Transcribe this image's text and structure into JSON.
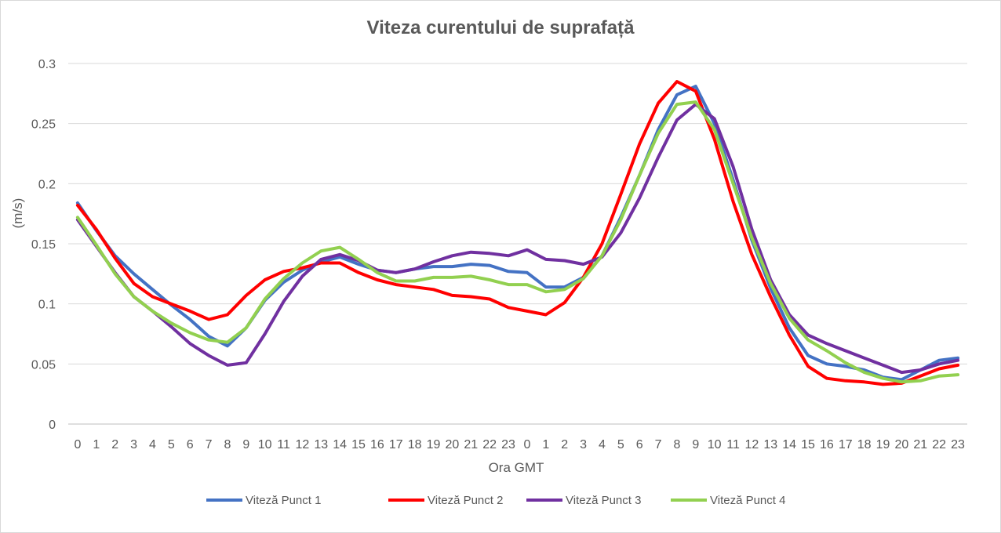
{
  "chart_data": {
    "type": "line",
    "title": "Viteza curentului de suprafață",
    "xlabel": "Ora GMT",
    "ylabel": "(m/s)",
    "ylim": [
      0,
      0.3
    ],
    "y_ticks": [
      "0",
      "0.05",
      "0.1",
      "0.15",
      "0.2",
      "0.25",
      "0.3"
    ],
    "y_tick_values": [
      0,
      0.05,
      0.1,
      0.15,
      0.2,
      0.25,
      0.3
    ],
    "grid": true,
    "legend_position": "bottom",
    "categories": [
      "0",
      "1",
      "2",
      "3",
      "4",
      "5",
      "6",
      "7",
      "8",
      "9",
      "10",
      "11",
      "12",
      "13",
      "14",
      "15",
      "16",
      "17",
      "18",
      "19",
      "20",
      "21",
      "22",
      "23",
      "0",
      "1",
      "2",
      "3",
      "4",
      "5",
      "6",
      "7",
      "8",
      "9",
      "10",
      "11",
      "12",
      "13",
      "14",
      "15",
      "16",
      "17",
      "18",
      "19",
      "20",
      "21",
      "22",
      "23"
    ],
    "series": [
      {
        "name": "Viteză Punct 1",
        "color": "#4472c4",
        "values": [
          0.184,
          0.161,
          0.14,
          0.125,
          0.112,
          0.099,
          0.087,
          0.073,
          0.065,
          0.08,
          0.103,
          0.118,
          0.128,
          0.135,
          0.139,
          0.133,
          0.128,
          0.126,
          0.129,
          0.131,
          0.131,
          0.133,
          0.132,
          0.127,
          0.126,
          0.114,
          0.114,
          0.122,
          0.14,
          0.172,
          0.207,
          0.245,
          0.274,
          0.281,
          0.25,
          0.203,
          0.153,
          0.113,
          0.08,
          0.057,
          0.05,
          0.048,
          0.045,
          0.039,
          0.037,
          0.045,
          0.053,
          0.055
        ]
      },
      {
        "name": "Viteză Punct 2",
        "color": "#ff0000",
        "values": [
          0.182,
          0.162,
          0.138,
          0.117,
          0.106,
          0.1,
          0.094,
          0.087,
          0.091,
          0.107,
          0.12,
          0.127,
          0.13,
          0.134,
          0.134,
          0.126,
          0.12,
          0.116,
          0.114,
          0.112,
          0.107,
          0.106,
          0.104,
          0.097,
          0.094,
          0.091,
          0.101,
          0.122,
          0.15,
          0.191,
          0.233,
          0.267,
          0.285,
          0.277,
          0.237,
          0.185,
          0.141,
          0.106,
          0.074,
          0.048,
          0.038,
          0.036,
          0.035,
          0.033,
          0.034,
          0.04,
          0.046,
          0.049
        ]
      },
      {
        "name": "Viteză Punct 3",
        "color": "#7030a0",
        "values": [
          0.17,
          0.148,
          0.126,
          0.106,
          0.094,
          0.081,
          0.067,
          0.057,
          0.049,
          0.051,
          0.075,
          0.102,
          0.123,
          0.137,
          0.141,
          0.136,
          0.128,
          0.126,
          0.129,
          0.135,
          0.14,
          0.143,
          0.142,
          0.14,
          0.145,
          0.137,
          0.136,
          0.133,
          0.139,
          0.159,
          0.188,
          0.222,
          0.253,
          0.266,
          0.254,
          0.214,
          0.162,
          0.12,
          0.091,
          0.074,
          0.067,
          0.061,
          0.055,
          0.049,
          0.043,
          0.045,
          0.05,
          0.053
        ]
      },
      {
        "name": "Viteză Punct 4",
        "color": "#92d050",
        "values": [
          0.172,
          0.149,
          0.125,
          0.106,
          0.094,
          0.084,
          0.076,
          0.07,
          0.068,
          0.08,
          0.104,
          0.121,
          0.134,
          0.144,
          0.147,
          0.137,
          0.126,
          0.119,
          0.119,
          0.122,
          0.122,
          0.123,
          0.12,
          0.116,
          0.116,
          0.11,
          0.112,
          0.121,
          0.14,
          0.17,
          0.207,
          0.242,
          0.266,
          0.268,
          0.245,
          0.2,
          0.155,
          0.117,
          0.088,
          0.07,
          0.061,
          0.051,
          0.043,
          0.038,
          0.035,
          0.036,
          0.04,
          0.041
        ]
      }
    ]
  }
}
